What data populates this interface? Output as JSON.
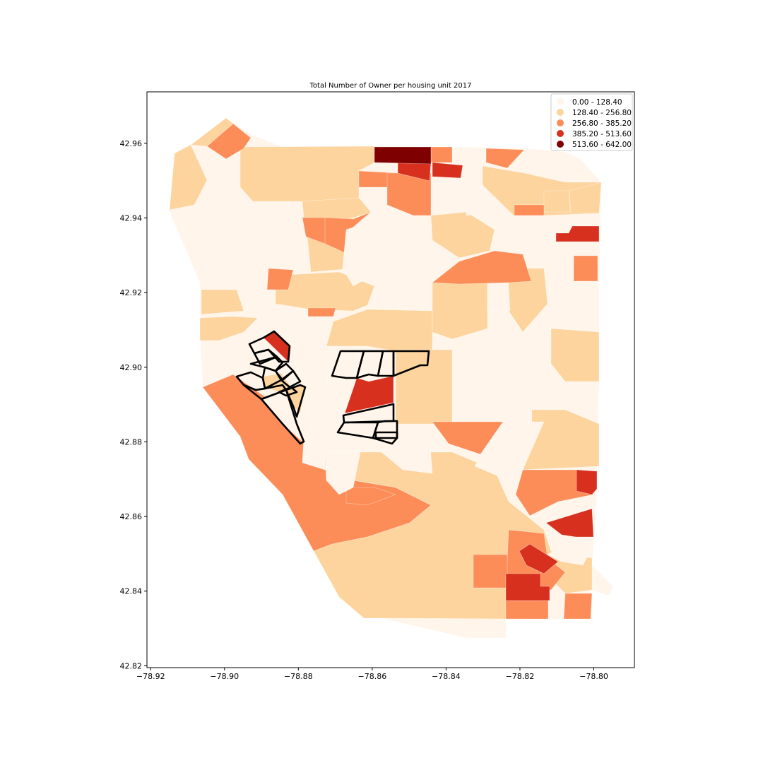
{
  "title": "Total Number of Owner per housing unit 2017",
  "colors": {
    "class_0": "#fff5eb",
    "class_1": "#fdd49e",
    "class_2": "#fc8d59",
    "class_3": "#d7301f",
    "class_4": "#7f0000",
    "highlight_outline": "#000000"
  },
  "legend": {
    "placement": "top-right",
    "items": [
      {
        "label": "0.00 - 128.40",
        "class": 0
      },
      {
        "label": "128.40 - 256.80",
        "class": 1
      },
      {
        "label": "256.80 - 385.20",
        "class": 2
      },
      {
        "label": "385.20 - 513.60",
        "class": 3
      },
      {
        "label": "513.60 - 642.00",
        "class": 4
      }
    ]
  },
  "chart_data": {
    "type": "choropleth",
    "title": "Total Number of Owner per housing unit 2017",
    "xlim": [
      -78.921,
      -78.789
    ],
    "ylim": [
      42.8195,
      42.9738
    ],
    "x_ticks": [
      -78.92,
      -78.9,
      -78.88,
      -78.86,
      -78.84,
      -78.82,
      -78.8
    ],
    "x_tick_labels": [
      "−78.92",
      "−78.90",
      "−78.88",
      "−78.86",
      "−78.84",
      "−78.82",
      "−78.80"
    ],
    "y_ticks": [
      42.82,
      42.84,
      42.86,
      42.88,
      42.9,
      42.92,
      42.94,
      42.96
    ],
    "y_tick_labels": [
      "42.82",
      "42.84",
      "42.86",
      "42.88",
      "42.90",
      "42.92",
      "42.94",
      "42.96"
    ],
    "classification": "equal interval",
    "bins": [
      [
        0.0,
        128.4
      ],
      [
        128.4,
        256.8
      ],
      [
        256.8,
        385.2
      ],
      [
        385.2,
        513.6
      ],
      [
        513.6,
        642.0
      ]
    ],
    "highlighted_tract_groups": 3,
    "grid": false
  }
}
